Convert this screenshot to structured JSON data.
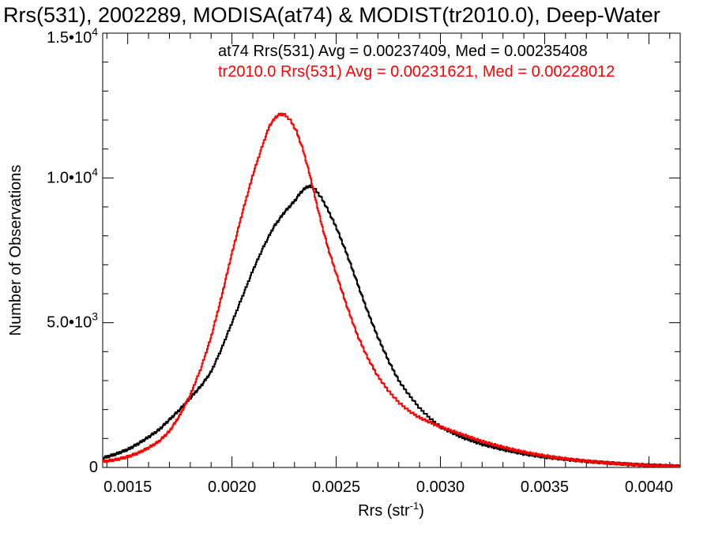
{
  "chart_data": {
    "type": "line",
    "step": true,
    "title": "Rrs(531), 2002289, MODISA(at74) & MODIST(tr2010.0), Deep-Water",
    "xlabel": "Rrs (str",
    "xlabel_sup": "-1",
    "xlabel_close": ")",
    "ylabel": "Number of Observations",
    "xlim": [
      0.00138,
      0.00415
    ],
    "ylim": [
      0,
      15000
    ],
    "x_ticks": [
      {
        "value": 0.0015,
        "label": "0.0015"
      },
      {
        "value": 0.002,
        "label": "0.0020"
      },
      {
        "value": 0.0025,
        "label": "0.0025"
      },
      {
        "value": 0.003,
        "label": "0.0030"
      },
      {
        "value": 0.0035,
        "label": "0.0035"
      },
      {
        "value": 0.004,
        "label": "0.0040"
      }
    ],
    "y_ticks": [
      {
        "value": 0,
        "label": "0",
        "sup": ""
      },
      {
        "value": 5000,
        "label": "5.0•10",
        "sup": "3"
      },
      {
        "value": 10000,
        "label": "1.0•10",
        "sup": "4"
      },
      {
        "value": 15000,
        "label": "1.5•10",
        "sup": "4"
      }
    ],
    "grid": false,
    "series": [
      {
        "name": "at74",
        "color": "#000000",
        "x": [
          0.00138,
          0.00145,
          0.0015,
          0.00155,
          0.0016,
          0.00165,
          0.0017,
          0.00175,
          0.0018,
          0.00185,
          0.0019,
          0.00195,
          0.002,
          0.00205,
          0.0021,
          0.00215,
          0.0022,
          0.00225,
          0.0023,
          0.00233,
          0.00236,
          0.00238,
          0.0024,
          0.00243,
          0.00246,
          0.0025,
          0.00255,
          0.0026,
          0.00265,
          0.0027,
          0.00275,
          0.0028,
          0.00285,
          0.0029,
          0.00295,
          0.003,
          0.0031,
          0.0032,
          0.0033,
          0.0034,
          0.0035,
          0.0036,
          0.0037,
          0.0038,
          0.0039,
          0.004,
          0.00415
        ],
        "y": [
          320,
          480,
          620,
          820,
          1050,
          1300,
          1650,
          2000,
          2400,
          2800,
          3300,
          4100,
          5000,
          5900,
          6800,
          7600,
          8300,
          8800,
          9200,
          9500,
          9700,
          9700,
          9600,
          9300,
          8900,
          8300,
          7400,
          6400,
          5400,
          4500,
          3700,
          3000,
          2500,
          2050,
          1700,
          1400,
          1050,
          800,
          620,
          470,
          360,
          280,
          210,
          160,
          110,
          80,
          40
        ]
      },
      {
        "name": "tr2010.0",
        "color": "#ff0000",
        "x": [
          0.00138,
          0.00145,
          0.0015,
          0.00155,
          0.0016,
          0.00165,
          0.0017,
          0.00175,
          0.0018,
          0.00185,
          0.0019,
          0.00195,
          0.002,
          0.00205,
          0.0021,
          0.00215,
          0.00218,
          0.00221,
          0.00223,
          0.00225,
          0.00228,
          0.00231,
          0.00234,
          0.00237,
          0.0024,
          0.00243,
          0.00246,
          0.0025,
          0.00255,
          0.0026,
          0.00265,
          0.0027,
          0.00275,
          0.0028,
          0.00285,
          0.0029,
          0.003,
          0.0031,
          0.0032,
          0.0033,
          0.0034,
          0.0035,
          0.0036,
          0.0037,
          0.0038,
          0.0039,
          0.004,
          0.00415
        ],
        "y": [
          200,
          280,
          370,
          500,
          680,
          900,
          1250,
          1800,
          2500,
          3400,
          4500,
          5900,
          7400,
          8800,
          10100,
          11200,
          11800,
          12100,
          12200,
          12200,
          12000,
          11600,
          11000,
          10200,
          9300,
          8400,
          7600,
          6700,
          5600,
          4600,
          3800,
          3150,
          2650,
          2250,
          1950,
          1720,
          1400,
          1150,
          900,
          700,
          530,
          400,
          300,
          220,
          160,
          110,
          70,
          35
        ]
      }
    ],
    "annotations": [
      {
        "text": "at74 Rrs(531) Avg = 0.00237409, Med = 0.00235408",
        "color": "#000000"
      },
      {
        "text": "tr2010.0 Rrs(531) Avg = 0.00231621, Med = 0.00228012",
        "color": "#ff0000"
      }
    ]
  }
}
